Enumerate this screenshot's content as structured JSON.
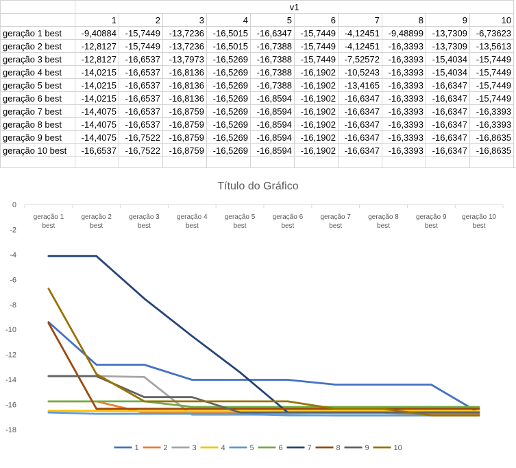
{
  "sheet": {
    "title": "v1",
    "column_headers": [
      "1",
      "2",
      "3",
      "4",
      "5",
      "6",
      "7",
      "8",
      "9",
      "10"
    ],
    "rows": [
      {
        "label": "geração 1 best",
        "values": [
          "-9,40884",
          "-15,7449",
          "-13,7236",
          "-16,5015",
          "-16,6347",
          "-15,7449",
          "-4,12451",
          "-9,48899",
          "-13,7309",
          "-6,73623"
        ]
      },
      {
        "label": "geração 2 best",
        "values": [
          "-12,8127",
          "-15,7449",
          "-13,7236",
          "-16,5015",
          "-16,7388",
          "-15,7449",
          "-4,12451",
          "-16,3393",
          "-13,7309",
          "-13,5613"
        ]
      },
      {
        "label": "geração 3 best",
        "values": [
          "-12,8127",
          "-16,6537",
          "-13,7973",
          "-16,5269",
          "-16,7388",
          "-15,7449",
          "-7,52572",
          "-16,3393",
          "-15,4034",
          "-15,7449"
        ]
      },
      {
        "label": "geração 4 best",
        "values": [
          "-14,0215",
          "-16,6537",
          "-16,8136",
          "-16,5269",
          "-16,7388",
          "-16,1902",
          "-10,5243",
          "-16,3393",
          "-15,4034",
          "-15,7449"
        ]
      },
      {
        "label": "geração 5 best",
        "values": [
          "-14,0215",
          "-16,6537",
          "-16,8136",
          "-16,5269",
          "-16,7388",
          "-16,1902",
          "-13,4165",
          "-16,3393",
          "-16,6347",
          "-15,7449"
        ]
      },
      {
        "label": "geração 6 best",
        "values": [
          "-14,0215",
          "-16,6537",
          "-16,8136",
          "-16,5269",
          "-16,8594",
          "-16,1902",
          "-16,6347",
          "-16,3393",
          "-16,6347",
          "-15,7449"
        ]
      },
      {
        "label": "geração 7 best",
        "values": [
          "-14,4075",
          "-16,6537",
          "-16,8759",
          "-16,5269",
          "-16,8594",
          "-16,1902",
          "-16,6347",
          "-16,3393",
          "-16,6347",
          "-16,3393"
        ]
      },
      {
        "label": "geração 8 best",
        "values": [
          "-14,4075",
          "-16,6537",
          "-16,8759",
          "-16,5269",
          "-16,8594",
          "-16,1902",
          "-16,6347",
          "-16,3393",
          "-16,6347",
          "-16,3393"
        ]
      },
      {
        "label": "geração 9 best",
        "values": [
          "-14,4075",
          "-16,7522",
          "-16,8759",
          "-16,5269",
          "-16,8594",
          "-16,1902",
          "-16,6347",
          "-16,3393",
          "-16,6347",
          "-16,8635"
        ]
      },
      {
        "label": "geração 10 best",
        "values": [
          "-16,6537",
          "-16,7522",
          "-16,8759",
          "-16,5269",
          "-16,8594",
          "-16,1902",
          "-16,6347",
          "-16,3393",
          "-16,6347",
          "-16,8635"
        ]
      }
    ]
  },
  "chart_data": {
    "type": "line",
    "title": "Título do Gráfico",
    "categories": [
      "geração 1 best",
      "geração 2 best",
      "geração 3 best",
      "geração 4 best",
      "geração 5 best",
      "geração 6 best",
      "geração 7 best",
      "geração 8 best",
      "geração 9 best",
      "geração 10 best"
    ],
    "ylim": [
      -18,
      0
    ],
    "yticks": [
      0,
      -2,
      -4,
      -6,
      -8,
      -10,
      -12,
      -14,
      -16,
      -18
    ],
    "grid": false,
    "legend_position": "bottom",
    "series": [
      {
        "name": "1",
        "color": "#4472C4",
        "values": [
          -9.40884,
          -12.8127,
          -12.8127,
          -14.0215,
          -14.0215,
          -14.0215,
          -14.4075,
          -14.4075,
          -14.4075,
          -16.6537
        ]
      },
      {
        "name": "2",
        "color": "#ED7D31",
        "values": [
          -15.7449,
          -15.7449,
          -16.6537,
          -16.6537,
          -16.6537,
          -16.6537,
          -16.6537,
          -16.6537,
          -16.7522,
          -16.7522
        ]
      },
      {
        "name": "3",
        "color": "#A5A5A5",
        "values": [
          -13.7236,
          -13.7236,
          -13.7973,
          -16.8136,
          -16.8136,
          -16.8136,
          -16.8759,
          -16.8759,
          -16.8759,
          -16.8759
        ]
      },
      {
        "name": "4",
        "color": "#FFC000",
        "values": [
          -16.5015,
          -16.5015,
          -16.5269,
          -16.5269,
          -16.5269,
          -16.5269,
          -16.5269,
          -16.5269,
          -16.5269,
          -16.5269
        ]
      },
      {
        "name": "5",
        "color": "#5B9BD5",
        "values": [
          -16.6347,
          -16.7388,
          -16.7388,
          -16.7388,
          -16.7388,
          -16.8594,
          -16.8594,
          -16.8594,
          -16.8594,
          -16.8594
        ]
      },
      {
        "name": "6",
        "color": "#70AD47",
        "values": [
          -15.7449,
          -15.7449,
          -15.7449,
          -16.1902,
          -16.1902,
          -16.1902,
          -16.1902,
          -16.1902,
          -16.1902,
          -16.1902
        ]
      },
      {
        "name": "7",
        "color": "#264478",
        "values": [
          -4.12451,
          -4.12451,
          -7.52572,
          -10.5243,
          -13.4165,
          -16.6347,
          -16.6347,
          -16.6347,
          -16.6347,
          -16.6347
        ]
      },
      {
        "name": "8",
        "color": "#9E480E",
        "values": [
          -9.48899,
          -16.3393,
          -16.3393,
          -16.3393,
          -16.3393,
          -16.3393,
          -16.3393,
          -16.3393,
          -16.3393,
          -16.3393
        ]
      },
      {
        "name": "9",
        "color": "#636363",
        "values": [
          -13.7309,
          -13.7309,
          -15.4034,
          -15.4034,
          -16.6347,
          -16.6347,
          -16.6347,
          -16.6347,
          -16.6347,
          -16.6347
        ]
      },
      {
        "name": "10",
        "color": "#997300",
        "values": [
          -6.73623,
          -13.5613,
          -15.7449,
          -15.7449,
          -15.7449,
          -15.7449,
          -16.3393,
          -16.3393,
          -16.8635,
          -16.8635
        ]
      }
    ]
  }
}
